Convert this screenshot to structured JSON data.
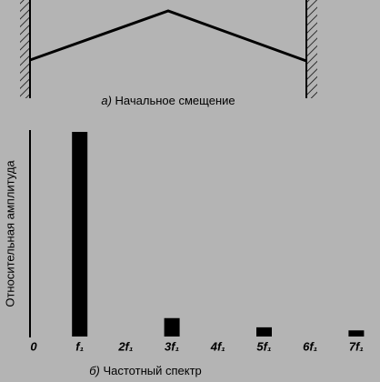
{
  "diagram": {
    "caption_label": "а)",
    "caption": "Начальное смещение"
  },
  "chart_data": {
    "type": "bar",
    "caption_label": "б)",
    "caption": "Частотный спектр",
    "ylabel": "Относительная амплитуда",
    "categories": [
      "0",
      "f₁",
      "2f₁",
      "3f₁",
      "4f₁",
      "5f₁",
      "6f₁",
      "7f₁"
    ],
    "values": [
      null,
      1,
      0,
      0.09,
      0,
      0.045,
      0,
      0.03
    ],
    "ylim": [
      0,
      1
    ],
    "color": "#000000",
    "grid": false
  }
}
